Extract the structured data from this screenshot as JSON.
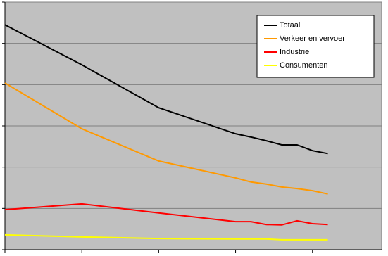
{
  "chart_data": {
    "type": "line",
    "x": [
      0,
      5,
      10,
      15,
      16,
      17,
      18,
      19,
      20,
      21
    ],
    "series": [
      {
        "name": "Totaal",
        "color": "#000000",
        "values": [
          5.45,
          4.48,
          3.44,
          2.81,
          2.73,
          2.64,
          2.54,
          2.54,
          2.4,
          2.33
        ]
      },
      {
        "name": "Verkeer en vervoer",
        "color": "#ff9900",
        "values": [
          4.04,
          2.93,
          2.15,
          1.74,
          1.64,
          1.59,
          1.52,
          1.48,
          1.43,
          1.35
        ]
      },
      {
        "name": "Industrie",
        "color": "#ff0000",
        "values": [
          0.97,
          1.11,
          0.89,
          0.68,
          0.68,
          0.61,
          0.6,
          0.7,
          0.63,
          0.61
        ]
      },
      {
        "name": "Consumenten",
        "color": "#ffff00",
        "values": [
          0.36,
          0.31,
          0.27,
          0.26,
          0.26,
          0.26,
          0.24,
          0.24,
          0.24,
          0.24
        ]
      }
    ],
    "xlim": [
      0,
      24.5
    ],
    "xticks": [
      0,
      5,
      10,
      15,
      20
    ],
    "ylim": [
      0,
      6
    ],
    "yticks": [
      0,
      1,
      2,
      3,
      4,
      5,
      6
    ],
    "grid": true,
    "legend": "upper right",
    "background": "#c0c0c0"
  }
}
